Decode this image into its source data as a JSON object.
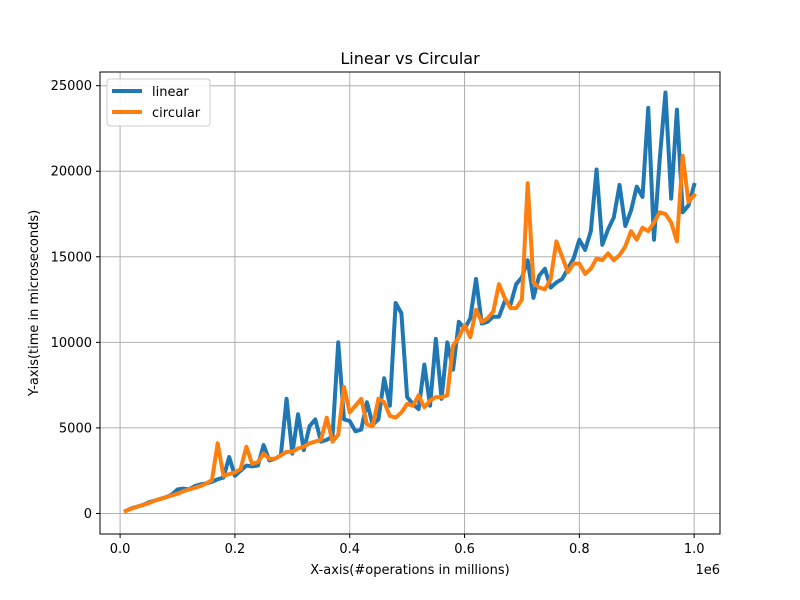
{
  "chart_data": {
    "type": "line",
    "title": "Linear vs Circular",
    "xlabel": "X-axis(#operations in millions)",
    "ylabel": "Y-axis(time in microseconds)",
    "x_offset_label": "1e6",
    "xlim": [
      -35000,
      1045000
    ],
    "ylim": [
      -1200,
      25800
    ],
    "xticks": [
      0,
      200000,
      400000,
      600000,
      800000,
      1000000
    ],
    "xtick_labels": [
      "0.0",
      "0.2",
      "0.4",
      "0.6",
      "0.8",
      "1.0"
    ],
    "yticks": [
      0,
      5000,
      10000,
      15000,
      20000,
      25000
    ],
    "ytick_labels": [
      "0",
      "5000",
      "10000",
      "15000",
      "20000",
      "25000"
    ],
    "grid": true,
    "legend_position": "top-left",
    "x": [
      10000,
      20000,
      30000,
      40000,
      50000,
      60000,
      70000,
      80000,
      90000,
      100000,
      110000,
      120000,
      130000,
      140000,
      150000,
      160000,
      170000,
      180000,
      190000,
      200000,
      210000,
      220000,
      230000,
      240000,
      250000,
      260000,
      270000,
      280000,
      290000,
      300000,
      310000,
      320000,
      330000,
      340000,
      350000,
      360000,
      370000,
      380000,
      390000,
      400000,
      410000,
      420000,
      430000,
      440000,
      450000,
      460000,
      470000,
      480000,
      490000,
      500000,
      510000,
      520000,
      530000,
      540000,
      550000,
      560000,
      570000,
      580000,
      590000,
      600000,
      610000,
      620000,
      630000,
      640000,
      650000,
      660000,
      670000,
      680000,
      690000,
      700000,
      710000,
      720000,
      730000,
      740000,
      750000,
      760000,
      770000,
      780000,
      790000,
      800000,
      810000,
      820000,
      830000,
      840000,
      850000,
      860000,
      870000,
      880000,
      890000,
      900000,
      910000,
      920000,
      930000,
      940000,
      950000,
      960000,
      970000,
      980000,
      990000,
      1000000
    ],
    "series": [
      {
        "name": "linear",
        "color": "#1f77b4",
        "values": [
          150,
          300,
          400,
          500,
          650,
          750,
          850,
          950,
          1100,
          1400,
          1450,
          1400,
          1600,
          1700,
          1750,
          1850,
          2000,
          2100,
          3300,
          2200,
          2500,
          2800,
          2750,
          2800,
          4000,
          3100,
          3200,
          3400,
          6700,
          3500,
          5800,
          3700,
          5100,
          5500,
          4200,
          4300,
          4500,
          10000,
          5500,
          5400,
          4800,
          4900,
          6500,
          5200,
          5500,
          7900,
          6300,
          12300,
          11700,
          6800,
          6400,
          6100,
          8700,
          6300,
          10200,
          6700,
          10000,
          8400,
          11200,
          10800,
          11400,
          13700,
          11100,
          11200,
          11500,
          11500,
          12400,
          12200,
          13400,
          13800,
          14800,
          12600,
          13900,
          14300,
          13200,
          13500,
          13700,
          14300,
          14900,
          16000,
          15400,
          16500,
          20100,
          15700,
          16600,
          17300,
          19200,
          16800,
          17700,
          19100,
          18500,
          23700,
          16000,
          20700,
          24600,
          18400,
          23600,
          17600,
          18000,
          19200
        ]
      },
      {
        "name": "circular",
        "color": "#ff7f0e",
        "values": [
          150,
          280,
          400,
          500,
          600,
          750,
          850,
          950,
          1050,
          1150,
          1300,
          1400,
          1500,
          1600,
          1750,
          1950,
          4100,
          2200,
          2300,
          2400,
          2600,
          3900,
          2900,
          3000,
          3500,
          3200,
          3200,
          3400,
          3600,
          3600,
          3800,
          3900,
          4100,
          4200,
          4300,
          5600,
          4200,
          4600,
          7400,
          5900,
          6300,
          6700,
          5200,
          5100,
          6700,
          6500,
          5700,
          5600,
          5900,
          6400,
          6300,
          6900,
          6200,
          6600,
          6800,
          6800,
          6900,
          9800,
          10300,
          11000,
          10300,
          11900,
          11200,
          11400,
          11800,
          13400,
          12600,
          12000,
          12000,
          12500,
          19300,
          13500,
          13200,
          13100,
          13700,
          15900,
          15000,
          14100,
          14600,
          14600,
          14000,
          14300,
          14900,
          14800,
          15200,
          14800,
          15100,
          15600,
          16500,
          16000,
          16700,
          16500,
          17000,
          17600,
          17500,
          17000,
          15900,
          20900,
          18200,
          18600
        ]
      }
    ]
  }
}
